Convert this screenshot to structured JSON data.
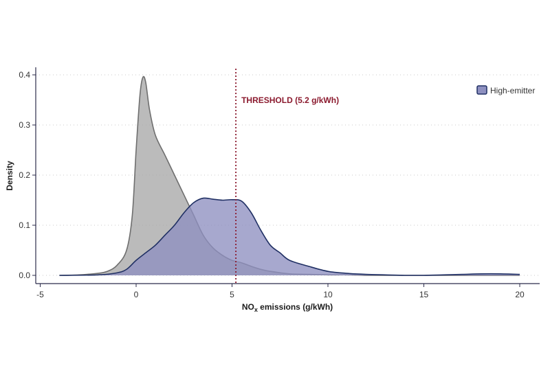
{
  "chart_data": {
    "type": "area",
    "xlabel_main": "NO",
    "xlabel_sub": "x",
    "xlabel_rest": " emissions (g/kWh)",
    "ylabel": "Density",
    "xlim": [
      -5,
      21
    ],
    "ylim": [
      0,
      0.42
    ],
    "x_ticks": [
      -5,
      0,
      5,
      10,
      15,
      20
    ],
    "x_tick_labels": [
      "-5",
      "0",
      "5",
      "10",
      "15",
      "20"
    ],
    "y_ticks": [
      0.0,
      0.1,
      0.2,
      0.3,
      0.4
    ],
    "y_tick_labels": [
      "0.0",
      "0.1",
      "0.2",
      "0.3",
      "0.4"
    ],
    "grid": "horizontal-dotted",
    "legend_position": "top-right",
    "threshold": {
      "x": 5.2,
      "label": "THRESHOLD (5.2 g/kWh)",
      "color": "#8b1a2e"
    },
    "series": [
      {
        "key": "grey",
        "fill": "#a8a8a8",
        "stroke": "#6e6e6e",
        "in_legend": false,
        "x": [
          -4,
          -3,
          -2,
          -1.5,
          -1,
          -0.5,
          -0.2,
          0,
          0.2,
          0.35,
          0.5,
          0.7,
          1,
          1.5,
          2,
          2.5,
          3,
          3.5,
          4,
          4.5,
          5,
          5.5,
          6,
          6.5,
          7,
          8,
          9,
          10,
          11,
          12,
          13,
          15,
          17,
          19,
          20
        ],
        "y": [
          0.0,
          0.001,
          0.004,
          0.008,
          0.02,
          0.05,
          0.12,
          0.25,
          0.36,
          0.395,
          0.385,
          0.33,
          0.28,
          0.24,
          0.2,
          0.16,
          0.12,
          0.08,
          0.055,
          0.04,
          0.03,
          0.025,
          0.018,
          0.012,
          0.008,
          0.003,
          0.002,
          0.001,
          0.001,
          0.0,
          0.0,
          0.0,
          0.0,
          0.0,
          0.0
        ]
      },
      {
        "key": "high-emitter",
        "name": "High-emitter",
        "fill": "#8e90c0",
        "stroke": "#1f2f63",
        "in_legend": true,
        "x": [
          -4,
          -2,
          -1,
          -0.5,
          0,
          0.5,
          1,
          1.5,
          2,
          2.5,
          3,
          3.5,
          4,
          4.5,
          5,
          5.5,
          6,
          6.5,
          7,
          7.5,
          8,
          9,
          10,
          11,
          12,
          13,
          14,
          15,
          16,
          17,
          18,
          19,
          20
        ],
        "y": [
          0.0,
          0.001,
          0.005,
          0.012,
          0.03,
          0.045,
          0.06,
          0.08,
          0.1,
          0.125,
          0.145,
          0.154,
          0.152,
          0.15,
          0.151,
          0.148,
          0.125,
          0.09,
          0.06,
          0.045,
          0.03,
          0.018,
          0.008,
          0.004,
          0.002,
          0.001,
          0.0,
          0.0,
          0.001,
          0.002,
          0.003,
          0.003,
          0.002
        ]
      }
    ]
  }
}
